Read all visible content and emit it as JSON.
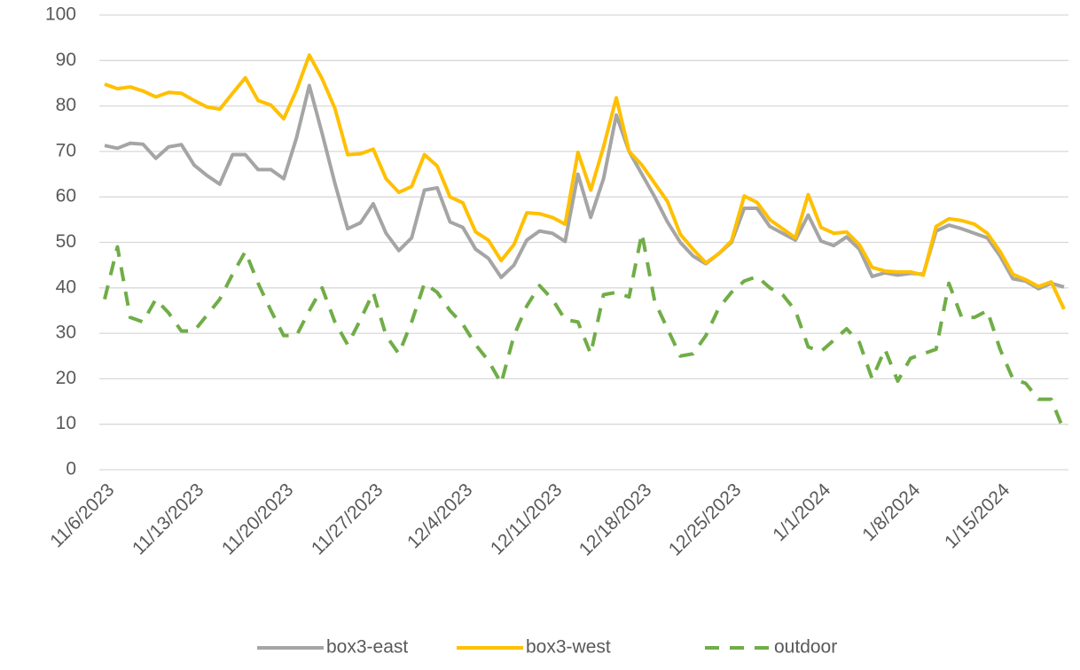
{
  "chart_data": {
    "type": "line",
    "categories": [
      "11/6/2023",
      null,
      null,
      null,
      null,
      null,
      null,
      "11/13/2023",
      null,
      null,
      null,
      null,
      null,
      null,
      "11/20/2023",
      null,
      null,
      null,
      null,
      null,
      null,
      "11/27/2023",
      null,
      null,
      null,
      null,
      null,
      null,
      "12/4/2023",
      null,
      null,
      null,
      null,
      null,
      null,
      "12/11/2023",
      null,
      null,
      null,
      null,
      null,
      null,
      "12/18/2023",
      null,
      null,
      null,
      null,
      null,
      null,
      "12/25/2023",
      null,
      null,
      null,
      null,
      null,
      null,
      "1/1/2024",
      null,
      null,
      null,
      null,
      null,
      null,
      "1/8/2024",
      null,
      null,
      null,
      null,
      null,
      null,
      "1/15/2024",
      null,
      null,
      null,
      null,
      null
    ],
    "series": [
      {
        "name": "box3-east",
        "color": "#a5a5a5",
        "style": "solid",
        "values": [
          71.3,
          70.7,
          71.8,
          71.6,
          68.5,
          71,
          71.5,
          67,
          64.7,
          62.8,
          69.3,
          69.3,
          66,
          66,
          64,
          73,
          84.5,
          74,
          63,
          53,
          54.3,
          58.5,
          52,
          48.2,
          51,
          61.5,
          62,
          54.5,
          53.3,
          48.5,
          46.5,
          42.3,
          45,
          50.5,
          52.5,
          52,
          50.2,
          65,
          55.5,
          64,
          78,
          70,
          65,
          60,
          54.5,
          50,
          47,
          45.3,
          47.5,
          50,
          57.5,
          57.5,
          53.5,
          52,
          50.5,
          56,
          50.3,
          49.3,
          51.2,
          48.5,
          42.5,
          43.3,
          42.8,
          43.2,
          43,
          52.5,
          53.8,
          53,
          52,
          51,
          47,
          42,
          41.5,
          39.8,
          41,
          40.2
        ]
      },
      {
        "name": "box3-west",
        "color": "#ffc000",
        "style": "solid",
        "values": [
          84.8,
          83.8,
          84.2,
          83.3,
          82,
          83,
          82.8,
          81.2,
          79.8,
          79.3,
          82.8,
          86.2,
          81.2,
          80.2,
          77.2,
          83.5,
          91.2,
          86,
          79.5,
          69.3,
          69.5,
          70.5,
          64,
          61,
          62.3,
          69.3,
          66.8,
          60,
          58.7,
          52.3,
          50.5,
          46,
          49.5,
          56.5,
          56.3,
          55.5,
          54,
          69.8,
          61.5,
          71,
          81.8,
          70,
          67,
          63,
          59,
          51.8,
          48.5,
          45.5,
          47.5,
          50.3,
          60.2,
          58.8,
          55,
          53,
          51,
          60.5,
          53.3,
          52,
          52.3,
          49.5,
          44.5,
          43.7,
          43.5,
          43.5,
          42.8,
          53.5,
          55.2,
          54.8,
          54,
          52,
          48,
          43,
          41.8,
          40.3,
          41.3,
          35.3
        ]
      },
      {
        "name": "outdoor",
        "color": "#70ad47",
        "style": "dashed",
        "values": [
          37.5,
          49,
          33.5,
          32.5,
          37.5,
          34.5,
          30.5,
          30.5,
          34,
          37.5,
          43,
          48,
          41,
          35,
          29.5,
          29.5,
          35,
          40,
          32.5,
          27.5,
          33,
          39,
          29.5,
          25.5,
          32.5,
          41,
          39,
          35,
          32,
          27.5,
          24,
          19,
          29.5,
          36,
          40.5,
          37.5,
          33,
          32.5,
          25.5,
          38.5,
          39,
          38,
          52,
          37,
          31,
          25,
          25.5,
          29.5,
          35.5,
          39,
          41.5,
          42.5,
          40,
          38.5,
          35,
          27,
          26,
          28.5,
          31,
          28,
          20,
          26.5,
          19.5,
          24.5,
          25.5,
          26.5,
          41,
          33.5,
          33.5,
          35,
          26.5,
          20,
          19,
          15.5,
          15.5,
          8.5
        ]
      }
    ],
    "ylim": [
      0,
      100
    ],
    "yticks": [
      0,
      10,
      20,
      30,
      40,
      50,
      60,
      70,
      80,
      90,
      100
    ],
    "grid": true,
    "legend": "bottom"
  }
}
